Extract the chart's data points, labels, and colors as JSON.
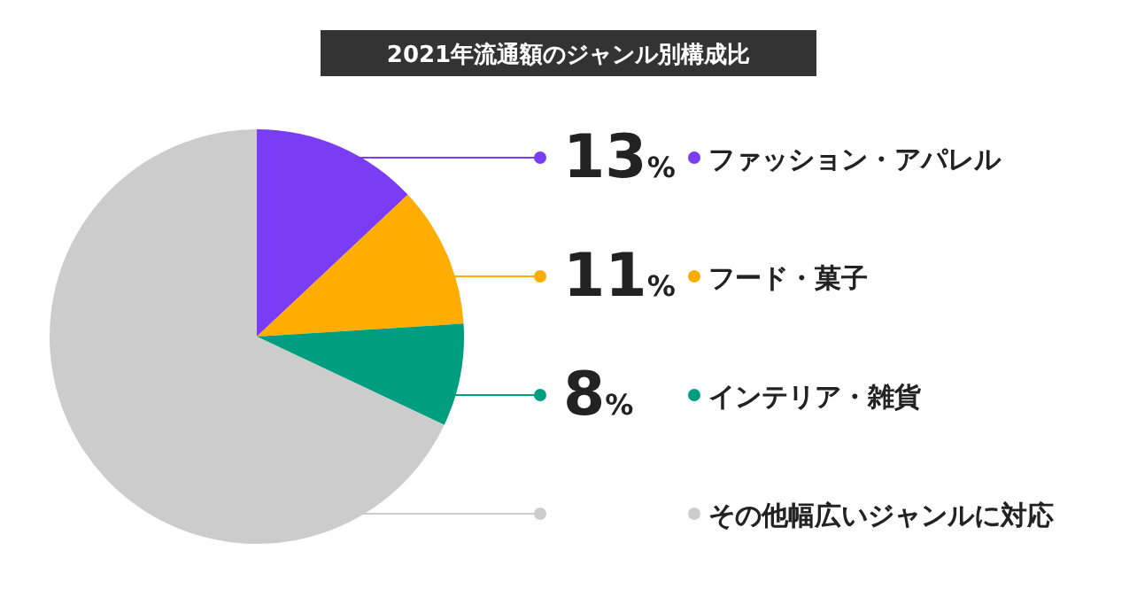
{
  "chart_data": {
    "type": "pie",
    "title": "2021年流通額のジャンル別構成比",
    "categories": [
      "ファッション・アパレル",
      "フード・菓子",
      "インテリア・雑貨",
      "その他幅広いジャンルに対応"
    ],
    "values": [
      13,
      11,
      8,
      68
    ],
    "value_labels": [
      "13%",
      "11%",
      "8%",
      null
    ],
    "colors": [
      "#7b3cf5",
      "#ffad00",
      "#009e80",
      "#cccccc"
    ],
    "legend": "right"
  }
}
